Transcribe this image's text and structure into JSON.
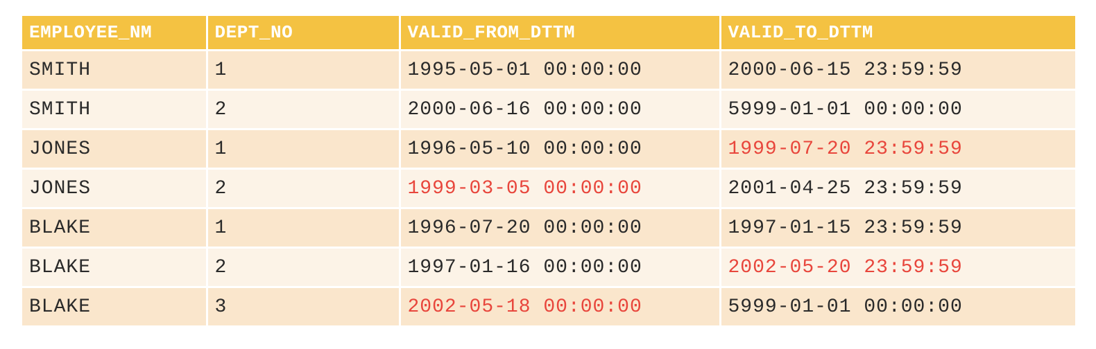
{
  "table": {
    "columns": [
      "EMPLOYEE_NM",
      "DEPT_NO",
      "VALID_FROM_DTTM",
      "VALID_TO_DTTM"
    ],
    "rows": [
      {
        "employee_nm": "SMITH",
        "dept_no": "1",
        "valid_from_dttm": "1995-05-01 00:00:00",
        "valid_to_dttm": "2000-06-15 23:59:59",
        "highlight_from": false,
        "highlight_to": false
      },
      {
        "employee_nm": "SMITH",
        "dept_no": "2",
        "valid_from_dttm": "2000-06-16 00:00:00",
        "valid_to_dttm": "5999-01-01 00:00:00",
        "highlight_from": false,
        "highlight_to": false
      },
      {
        "employee_nm": "JONES",
        "dept_no": "1",
        "valid_from_dttm": "1996-05-10 00:00:00",
        "valid_to_dttm": "1999-07-20 23:59:59",
        "highlight_from": false,
        "highlight_to": true
      },
      {
        "employee_nm": "JONES",
        "dept_no": "2",
        "valid_from_dttm": "1999-03-05 00:00:00",
        "valid_to_dttm": "2001-04-25 23:59:59",
        "highlight_from": true,
        "highlight_to": false
      },
      {
        "employee_nm": "BLAKE",
        "dept_no": "1",
        "valid_from_dttm": "1996-07-20 00:00:00",
        "valid_to_dttm": "1997-01-15 23:59:59",
        "highlight_from": false,
        "highlight_to": false
      },
      {
        "employee_nm": "BLAKE",
        "dept_no": "2",
        "valid_from_dttm": "1997-01-16 00:00:00",
        "valid_to_dttm": "2002-05-20 23:59:59",
        "highlight_from": false,
        "highlight_to": true
      },
      {
        "employee_nm": "BLAKE",
        "dept_no": "3",
        "valid_from_dttm": "2002-05-18 00:00:00",
        "valid_to_dttm": "5999-01-01 00:00:00",
        "highlight_from": true,
        "highlight_to": false
      }
    ]
  },
  "colors": {
    "header_bg": "#f4c242",
    "header_text": "#ffffff",
    "row_odd_bg": "#fae6cc",
    "row_even_bg": "#fcf3e7",
    "text": "#2a2a2a",
    "highlight_text": "#e8463c"
  }
}
